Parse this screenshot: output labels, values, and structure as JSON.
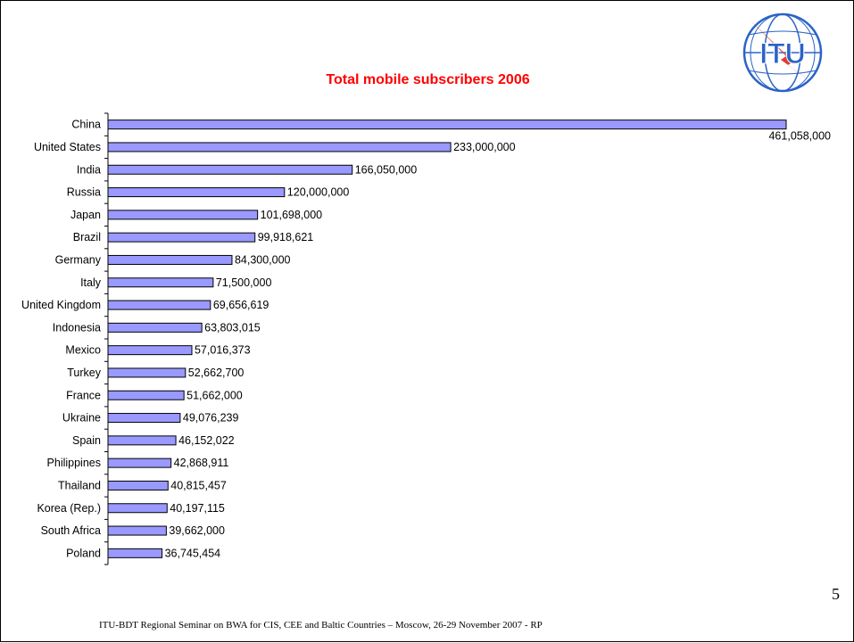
{
  "slide": {
    "page_number": "5",
    "footer": "ITU-BDT Regional Seminar on BWA for CIS, CEE and Baltic Countries – Moscow,   26-29  November  2007 - RP",
    "logo_text": "ITU",
    "title_color": "#ff0000",
    "bar_color": "#9999ff"
  },
  "chart_data": {
    "type": "bar",
    "orientation": "horizontal",
    "title": "Total mobile subscribers 2006",
    "xlabel": "",
    "ylabel": "",
    "grid": false,
    "categories": [
      "China",
      "United States",
      "India",
      "Russia",
      "Japan",
      "Brazil",
      "Germany",
      "Italy",
      "United Kingdom",
      "Indonesia",
      "Mexico",
      "Turkey",
      "France",
      "Ukraine",
      "Spain",
      "Philippines",
      "Thailand",
      "Korea (Rep.)",
      "South Africa",
      "Poland"
    ],
    "values": [
      461058000,
      233000000,
      166050000,
      120000000,
      101698000,
      99918621,
      84300000,
      71500000,
      69656619,
      63803015,
      57016373,
      52662700,
      51662000,
      49076239,
      46152022,
      42868911,
      40815457,
      40197115,
      39662000,
      36745454
    ],
    "data_labels": [
      "461,058,000",
      "233,000,000",
      "166,050,000",
      "120,000,000",
      "101,698,000",
      "99,918,621",
      "84,300,000",
      "71,500,000",
      "69,656,619",
      "63,803,015",
      "57,016,373",
      "52,662,700",
      "51,662,000",
      "49,076,239",
      "46,152,022",
      "42,868,911",
      "40,815,457",
      "40,197,115",
      "39,662,000",
      "36,745,454"
    ]
  }
}
